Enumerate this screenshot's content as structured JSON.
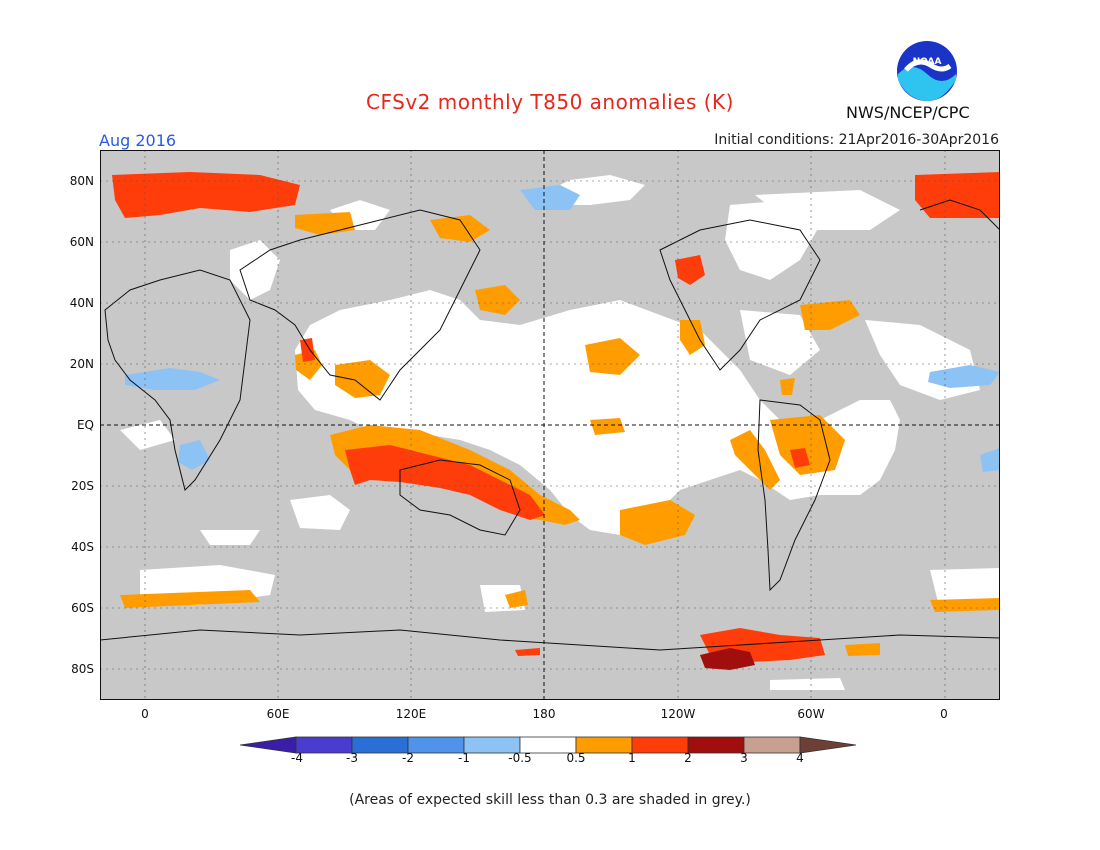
{
  "header": {
    "title": "CFSv2 monthly T850 anomalies (K)",
    "month": "Aug 2016",
    "initial_conditions": "Initial conditions: 21Apr2016-30Apr2016",
    "agency": "NWS/NCEP/CPC",
    "logo_text": "NOAA"
  },
  "axes": {
    "y_ticks": [
      "80N",
      "60N",
      "40N",
      "20N",
      "EQ",
      "20S",
      "40S",
      "60S",
      "80S"
    ],
    "x_ticks": [
      "0",
      "60E",
      "120E",
      "180",
      "120W",
      "60W",
      "0"
    ]
  },
  "colorbar": {
    "labels": [
      "-4",
      "-3",
      "-2",
      "-1",
      "-0.5",
      "0.5",
      "1",
      "2",
      "3",
      "4"
    ],
    "colors": [
      "#3a1ea8",
      "#4a3ccf",
      "#2a6fd6",
      "#4f93ea",
      "#8cc2f4",
      "#ffffff",
      "#ff9d00",
      "#ff3d0a",
      "#a00e0e",
      "#c8a090",
      "#6e4035"
    ]
  },
  "colors": {
    "skill_grey": "#c8c8c8",
    "ocean_base": "#ffffff",
    "title": "#e8261b",
    "month": "#2b59e6"
  },
  "footnote": "(Areas of expected skill less than 0.3 are shaded in grey.)"
}
